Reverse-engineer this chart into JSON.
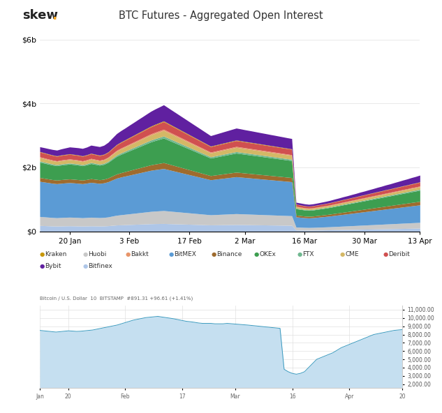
{
  "title": "BTC Futures - Aggregated Open Interest",
  "skew_dot_color": "#f5a623",
  "top_chart": {
    "xtick_labels": [
      "20 Jan",
      "3 Feb",
      "17 Feb",
      "2 Mar",
      "16 Mar",
      "30 Mar",
      "13 Apr"
    ],
    "xtick_pos": [
      7,
      21,
      35,
      48,
      62,
      76,
      89
    ],
    "ylim": [
      0,
      6200000000.0
    ],
    "ytick_vals": [
      0,
      2000000000,
      4000000000,
      6000000000
    ],
    "ytick_labels": [
      "$0",
      "$2b",
      "$4b",
      "$6b"
    ],
    "series_order": [
      "Bitfinex",
      "Huobi",
      "BitMEX",
      "Binance",
      "OKEx",
      "FTX",
      "CME",
      "Bakkt",
      "Deribit",
      "Kraken",
      "Bybit"
    ],
    "series": {
      "Bitfinex": {
        "color": "#aec6e8",
        "values": [
          180,
          175,
          170,
          165,
          162,
          165,
          168,
          170,
          168,
          165,
          162,
          165,
          168,
          166,
          164,
          166,
          172,
          185,
          195,
          200,
          205,
          210,
          215,
          220,
          225,
          230,
          235,
          238,
          240,
          242,
          238,
          234,
          230,
          226,
          222,
          218,
          214,
          210,
          206,
          202,
          198,
          200,
          202,
          204,
          206,
          208,
          210,
          208,
          206,
          204,
          202,
          200,
          198,
          196,
          194,
          192,
          190,
          188,
          186,
          184,
          40,
          38,
          36,
          35,
          36,
          38,
          40,
          42,
          44,
          47,
          49,
          52,
          54,
          57,
          59,
          62,
          64,
          67,
          69,
          72,
          74,
          77,
          79,
          82,
          84,
          87,
          89,
          92,
          94,
          97
        ]
      },
      "Huobi": {
        "color": "#c8c8c8",
        "values": [
          280,
          275,
          270,
          265,
          260,
          265,
          268,
          270,
          268,
          265,
          260,
          265,
          270,
          266,
          262,
          266,
          275,
          290,
          305,
          315,
          325,
          335,
          345,
          355,
          365,
          375,
          385,
          392,
          398,
          404,
          396,
          388,
          380,
          372,
          364,
          356,
          348,
          340,
          332,
          324,
          316,
          320,
          324,
          328,
          332,
          336,
          340,
          337,
          334,
          331,
          328,
          325,
          322,
          319,
          316,
          313,
          310,
          307,
          304,
          301,
          90,
          87,
          84,
          82,
          84,
          87,
          90,
          93,
          96,
          100,
          104,
          108,
          112,
          116,
          120,
          124,
          128,
          132,
          136,
          140,
          144,
          148,
          152,
          156,
          160,
          164,
          168,
          172,
          176,
          180
        ]
      },
      "BitMEX": {
        "color": "#5b9bd5",
        "values": [
          1100,
          1090,
          1080,
          1070,
          1065,
          1070,
          1075,
          1080,
          1075,
          1070,
          1065,
          1075,
          1090,
          1080,
          1070,
          1080,
          1100,
          1130,
          1160,
          1180,
          1195,
          1210,
          1225,
          1240,
          1255,
          1270,
          1285,
          1295,
          1305,
          1315,
          1295,
          1275,
          1255,
          1235,
          1215,
          1195,
          1175,
          1155,
          1135,
          1115,
          1095,
          1105,
          1115,
          1125,
          1135,
          1145,
          1155,
          1148,
          1141,
          1134,
          1127,
          1120,
          1113,
          1106,
          1099,
          1092,
          1085,
          1078,
          1071,
          1064,
          320,
          312,
          304,
          300,
          304,
          312,
          320,
          328,
          337,
          347,
          357,
          367,
          377,
          387,
          397,
          407,
          417,
          427,
          437,
          447,
          457,
          467,
          477,
          487,
          497,
          507,
          517,
          527,
          537,
          547
        ]
      },
      "Binance": {
        "color": "#9e6b2e",
        "values": [
          120,
          118,
          116,
          114,
          112,
          114,
          115,
          116,
          115,
          114,
          112,
          114,
          116,
          115,
          114,
          115,
          118,
          124,
          130,
          135,
          140,
          145,
          150,
          155,
          160,
          165,
          170,
          175,
          180,
          185,
          180,
          175,
          170,
          165,
          160,
          155,
          150,
          145,
          140,
          135,
          130,
          132,
          134,
          136,
          138,
          140,
          142,
          141,
          140,
          139,
          138,
          137,
          136,
          135,
          134,
          133,
          132,
          131,
          130,
          129,
          55,
          53,
          51,
          50,
          51,
          53,
          55,
          57,
          59,
          62,
          64,
          67,
          69,
          72,
          74,
          77,
          79,
          82,
          84,
          87,
          89,
          92,
          94,
          97,
          99,
          102,
          104,
          107,
          109,
          112
        ]
      },
      "OKEx": {
        "color": "#3d9e50",
        "values": [
          480,
          472,
          464,
          456,
          450,
          456,
          460,
          464,
          460,
          456,
          450,
          458,
          472,
          464,
          456,
          464,
          488,
          520,
          552,
          575,
          595,
          616,
          636,
          657,
          677,
          698,
          718,
          736,
          752,
          768,
          748,
          728,
          708,
          688,
          668,
          648,
          628,
          608,
          588,
          568,
          548,
          556,
          564,
          572,
          580,
          588,
          596,
          591,
          586,
          581,
          576,
          571,
          566,
          561,
          556,
          551,
          546,
          541,
          536,
          531,
          200,
          195,
          190,
          187,
          190,
          195,
          200,
          205,
          210,
          217,
          223,
          230,
          236,
          243,
          249,
          256,
          262,
          269,
          275,
          282,
          288,
          295,
          301,
          308,
          314,
          321,
          327,
          334,
          340,
          347
        ]
      },
      "FTX": {
        "color": "#70b890",
        "values": [
          35,
          34,
          33,
          32,
          32,
          32,
          33,
          33,
          33,
          32,
          32,
          33,
          34,
          33,
          32,
          33,
          35,
          38,
          41,
          43,
          45,
          47,
          49,
          51,
          53,
          55,
          57,
          59,
          61,
          63,
          61,
          59,
          57,
          55,
          53,
          51,
          49,
          47,
          45,
          43,
          41,
          42,
          43,
          44,
          45,
          46,
          47,
          47,
          46,
          46,
          45,
          45,
          44,
          44,
          43,
          43,
          42,
          42,
          41,
          41,
          18,
          17,
          17,
          16,
          17,
          17,
          18,
          18,
          19,
          20,
          20,
          21,
          22,
          22,
          23,
          24,
          24,
          25,
          26,
          26,
          27,
          28,
          28,
          29,
          30,
          30,
          31,
          32,
          32,
          33
        ]
      },
      "CME": {
        "color": "#d4b866",
        "values": [
          110,
          108,
          106,
          104,
          102,
          104,
          105,
          106,
          105,
          104,
          102,
          104,
          106,
          105,
          104,
          105,
          108,
          115,
          122,
          127,
          132,
          137,
          142,
          147,
          152,
          157,
          162,
          167,
          172,
          177,
          172,
          167,
          162,
          157,
          152,
          147,
          142,
          137,
          132,
          127,
          122,
          124,
          126,
          128,
          130,
          132,
          134,
          133,
          132,
          131,
          130,
          129,
          128,
          127,
          126,
          125,
          124,
          123,
          122,
          121,
          45,
          44,
          43,
          42,
          43,
          44,
          45,
          46,
          47,
          49,
          50,
          52,
          53,
          55,
          56,
          58,
          59,
          61,
          62,
          64,
          65,
          67,
          68,
          70,
          71,
          73,
          74,
          76,
          77,
          79
        ]
      },
      "Bakkt": {
        "color": "#e8956a",
        "values": [
          22,
          22,
          21,
          21,
          20,
          21,
          21,
          22,
          21,
          21,
          20,
          21,
          22,
          21,
          20,
          21,
          22,
          24,
          26,
          27,
          28,
          29,
          30,
          31,
          32,
          33,
          34,
          35,
          36,
          37,
          36,
          35,
          34,
          33,
          32,
          31,
          30,
          29,
          28,
          27,
          26,
          26,
          27,
          27,
          27,
          28,
          28,
          28,
          27,
          27,
          27,
          26,
          26,
          25,
          25,
          25,
          24,
          24,
          23,
          23,
          11,
          11,
          10,
          10,
          10,
          11,
          11,
          11,
          12,
          12,
          13,
          13,
          13,
          14,
          14,
          14,
          15,
          15,
          16,
          16,
          16,
          17,
          17,
          17,
          18,
          18,
          18,
          19,
          19,
          20
        ]
      },
      "Deribit": {
        "color": "#d05050",
        "values": [
          150,
          148,
          146,
          144,
          142,
          144,
          145,
          146,
          145,
          144,
          142,
          144,
          146,
          145,
          144,
          145,
          148,
          157,
          166,
          173,
          179,
          186,
          192,
          199,
          205,
          212,
          218,
          224,
          230,
          236,
          230,
          224,
          218,
          212,
          206,
          200,
          194,
          188,
          182,
          176,
          170,
          172,
          174,
          176,
          178,
          180,
          182,
          181,
          180,
          179,
          178,
          177,
          176,
          175,
          174,
          173,
          172,
          171,
          170,
          169,
          62,
          61,
          59,
          58,
          59,
          61,
          62,
          64,
          66,
          68,
          71,
          73,
          75,
          78,
          80,
          83,
          85,
          88,
          90,
          93,
          95,
          98,
          100,
          103,
          105,
          108,
          110,
          113,
          115,
          118
        ]
      },
      "Kraken": {
        "color": "#c8980a",
        "values": [
          15,
          15,
          14,
          14,
          14,
          14,
          14,
          15,
          14,
          14,
          14,
          14,
          15,
          14,
          14,
          14,
          15,
          16,
          17,
          18,
          18,
          19,
          20,
          21,
          21,
          22,
          23,
          24,
          24,
          25,
          24,
          23,
          23,
          22,
          22,
          21,
          20,
          20,
          19,
          18,
          17,
          17,
          17,
          18,
          18,
          18,
          18,
          18,
          17,
          17,
          17,
          16,
          16,
          16,
          15,
          15,
          15,
          14,
          14,
          14,
          6,
          6,
          6,
          6,
          6,
          6,
          6,
          6,
          7,
          7,
          7,
          8,
          8,
          8,
          8,
          9,
          9,
          9,
          9,
          10,
          10,
          10,
          10,
          10,
          11,
          11,
          11,
          11,
          12,
          12
        ]
      },
      "Bybit": {
        "color": "#6020a0",
        "values": [
          150,
          158,
          165,
          172,
          178,
          190,
          202,
          214,
          220,
          226,
          232,
          239,
          253,
          260,
          267,
          280,
          300,
          320,
          340,
          354,
          368,
          384,
          400,
          416,
          432,
          448,
          464,
          478,
          490,
          502,
          486,
          470,
          454,
          438,
          422,
          406,
          390,
          374,
          358,
          342,
          326,
          334,
          342,
          350,
          358,
          366,
          374,
          370,
          366,
          362,
          358,
          354,
          350,
          346,
          342,
          338,
          334,
          330,
          326,
          322,
          60,
          58,
          57,
          56,
          57,
          58,
          62,
          66,
          70,
          75,
          80,
          85,
          90,
          95,
          102,
          108,
          114,
          120,
          127,
          134,
          141,
          148,
          155,
          162,
          170,
          178,
          186,
          194,
          202,
          210
        ]
      }
    }
  },
  "bottom_chart": {
    "line_color": "#3a9abf",
    "fill_color": "#c5dff0",
    "subtitle": "Bitcoin / U.S. Dollar  10  BITSTAMP  #891.31 +96.61 (+1.41%)",
    "ytick_vals": [
      2000,
      3000,
      4000,
      5000,
      6000,
      7000,
      8000,
      9000,
      10000,
      11000
    ],
    "ylim": [
      1500,
      11500
    ],
    "price_data": [
      8500,
      8450,
      8400,
      8350,
      8300,
      8350,
      8400,
      8450,
      8420,
      8380,
      8400,
      8450,
      8500,
      8550,
      8650,
      8750,
      8850,
      8950,
      9050,
      9150,
      9300,
      9450,
      9600,
      9750,
      9850,
      9950,
      10050,
      10100,
      10150,
      10200,
      10120,
      10050,
      9980,
      9900,
      9800,
      9700,
      9600,
      9550,
      9480,
      9400,
      9350,
      9350,
      9350,
      9300,
      9300,
      9300,
      9350,
      9310,
      9270,
      9230,
      9190,
      9150,
      9100,
      9050,
      9000,
      8950,
      8900,
      8850,
      8800,
      8750,
      3800,
      3500,
      3300,
      3200,
      3300,
      3500,
      4000,
      4500,
      5000,
      5200,
      5400,
      5600,
      5800,
      6100,
      6400,
      6600,
      6800,
      7000,
      7200,
      7400,
      7600,
      7800,
      8000,
      8100,
      8200,
      8300,
      8400,
      8500,
      8550,
      8600
    ]
  },
  "legend": [
    {
      "label": "Kraken",
      "color": "#c8980a"
    },
    {
      "label": "Huobi",
      "color": "#c8c8c8"
    },
    {
      "label": "Bakkt",
      "color": "#e8956a"
    },
    {
      "label": "BitMEX",
      "color": "#5b9bd5"
    },
    {
      "label": "Binance",
      "color": "#9e6b2e"
    },
    {
      "label": "OKEx",
      "color": "#3d9e50"
    },
    {
      "label": "FTX",
      "color": "#70b890"
    },
    {
      "label": "CME",
      "color": "#d4b866"
    },
    {
      "label": "Deribit",
      "color": "#d05050"
    },
    {
      "label": "Bybit",
      "color": "#6020a0"
    },
    {
      "label": "Bitfinex",
      "color": "#aec6e8"
    }
  ]
}
